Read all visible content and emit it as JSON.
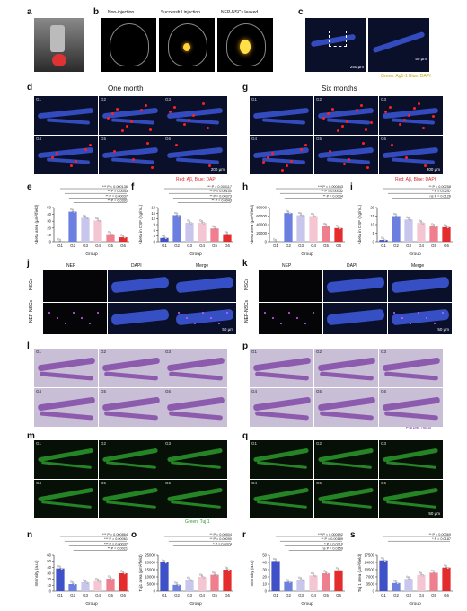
{
  "panels": {
    "a": "a",
    "b": "b",
    "c": "c",
    "d": "d",
    "e": "e",
    "f": "f",
    "g": "g",
    "h": "h",
    "i": "i",
    "j": "j",
    "k": "k",
    "l": "l",
    "m": "m",
    "n": "n",
    "o": "o",
    "p": "p",
    "q": "q",
    "r": "r",
    "s": "s"
  },
  "b_titles": [
    "Non-injection",
    "Successful injection",
    "NEP-NSCs leaked"
  ],
  "c_legend": "Green: Ag1-1 Blue: DAPI",
  "c_scale": [
    "250 µm",
    "50 µm"
  ],
  "d_title": "One month",
  "g_title": "Six months",
  "groups": [
    "G1",
    "G2",
    "G3",
    "G4",
    "G5",
    "G6"
  ],
  "ab_legend": "Red: Aβ, Blue: DAPI",
  "scale_200": "200 µm",
  "scale_50": "50 µm",
  "jk_cols": [
    "NEP",
    "DAPI",
    "Merge"
  ],
  "jk_rows": [
    "NSCs",
    "NEP-NSCs"
  ],
  "nissl_legend": "Purple: Nissl",
  "tuj_legend": "Green: Tuj 1",
  "colors": {
    "G1": "#3f51c8",
    "G2": "#6b7fe0",
    "G3": "#c9c6ee",
    "G4": "#f4c6d4",
    "G5": "#ef7e8e",
    "G6": "#e52c2c"
  },
  "chart_data": [
    {
      "id": "e",
      "type": "bar",
      "categories": [
        "G1",
        "G2",
        "G3",
        "G4",
        "G5",
        "G6"
      ],
      "values": [
        0.3,
        44,
        35,
        31,
        11,
        6.5
      ],
      "ylabel": "Abeta area (µm²/field)",
      "xlabel": "Group",
      "ylim": [
        0,
        50
      ],
      "yticks": [
        0,
        10,
        20,
        30,
        40,
        50
      ],
      "annotations": [
        "*** P = 0.000136",
        "** P = 0.0043",
        "** P = 0.00037",
        "** P = 0.0391"
      ]
    },
    {
      "id": "f",
      "type": "bar",
      "categories": [
        "G1",
        "G2",
        "G3",
        "G4",
        "G5",
        "G6"
      ],
      "values": [
        2,
        14,
        10,
        10,
        7,
        4
      ],
      "ylabel": "Abeta in CSF (ng/mL)",
      "xlabel": "Group",
      "ylim": [
        0,
        18
      ],
      "yticks": [
        0,
        3,
        6,
        9,
        12,
        15,
        18
      ],
      "annotations": [
        "*** P = 0.000117",
        "** P = 0.00100",
        "** P = 0.00373",
        "** P = 0.0043"
      ]
    },
    {
      "id": "h",
      "type": "bar",
      "categories": [
        "G1",
        "G2",
        "G3",
        "G4",
        "G5",
        "G6"
      ],
      "values": [
        200,
        67000,
        62000,
        60000,
        37000,
        32000
      ],
      "ylabel": "Abeta area (µm²/field)",
      "xlabel": "Group",
      "ylim": [
        0,
        80000
      ],
      "yticks": [
        0,
        20000,
        40000,
        60000,
        80000
      ],
      "annotations": [
        "*** P = 0.000843",
        "** P = 0.00032",
        "** P = 0.0034"
      ]
    },
    {
      "id": "i",
      "type": "bar",
      "categories": [
        "G1",
        "G2",
        "G3",
        "G4",
        "G5",
        "G6"
      ],
      "values": [
        1,
        15,
        13,
        11,
        9,
        8.5
      ],
      "ylabel": "Abeta in CSF (ng/mL)",
      "xlabel": "Group",
      "ylim": [
        0,
        20
      ],
      "yticks": [
        0,
        5,
        10,
        15,
        20
      ],
      "annotations": [
        "** P = 0.00258",
        "* P = 0.0247",
        "ns P = 0.0126"
      ]
    },
    {
      "id": "n",
      "type": "bar",
      "categories": [
        "G1",
        "G2",
        "G3",
        "G4",
        "G5",
        "G6"
      ],
      "values": [
        38,
        12,
        15,
        17,
        21,
        30
      ],
      "ylabel": "Intensity (a.u.)",
      "xlabel": "Group",
      "ylim": [
        0,
        60
      ],
      "yticks": [
        0,
        10,
        20,
        30,
        40,
        50,
        60
      ],
      "annotations": [
        "*** P = 0.000864",
        "*** P = 0.00061",
        "*** P = 0.00032",
        "** P = 0.0021"
      ]
    },
    {
      "id": "o",
      "type": "bar",
      "categories": [
        "G1",
        "G2",
        "G3",
        "G4",
        "G5",
        "G6"
      ],
      "values": [
        20000,
        4500,
        8000,
        10000,
        11500,
        15000
      ],
      "ylabel": "Tuj1 area (µm²/field)",
      "xlabel": "Group",
      "ylim": [
        0,
        25000
      ],
      "yticks": [
        0,
        5000,
        10000,
        15000,
        20000,
        25000
      ],
      "annotations": [
        "** P = 0.00504",
        "** P = 0.00090",
        "* P = 0.0374"
      ]
    },
    {
      "id": "r",
      "type": "bar",
      "categories": [
        "G1",
        "G2",
        "G3",
        "G4",
        "G5",
        "G6"
      ],
      "values": [
        42,
        13,
        16,
        22,
        25,
        29
      ],
      "ylabel": "Intensity (a.u.)",
      "xlabel": "Group",
      "ylim": [
        0,
        50
      ],
      "yticks": [
        0,
        10,
        20,
        30,
        40,
        50
      ],
      "annotations": [
        "*** P = 0.000692",
        "** P = 0.00189",
        "* P = 0.0310",
        "ns P = 0.0159"
      ]
    },
    {
      "id": "s",
      "type": "bar",
      "categories": [
        "G1",
        "G2",
        "G3",
        "G4",
        "G5",
        "G6"
      ],
      "values": [
        15000,
        4000,
        6000,
        8000,
        9000,
        11500
      ],
      "ylabel": "Tuj 1 area (µm²/field)",
      "xlabel": "Group",
      "ylim": [
        0,
        17500
      ],
      "yticks": [
        0,
        3500,
        7000,
        10500,
        14000,
        17500
      ],
      "annotations": [
        "** P = 0.00369",
        "* P = 0.0187"
      ]
    }
  ]
}
